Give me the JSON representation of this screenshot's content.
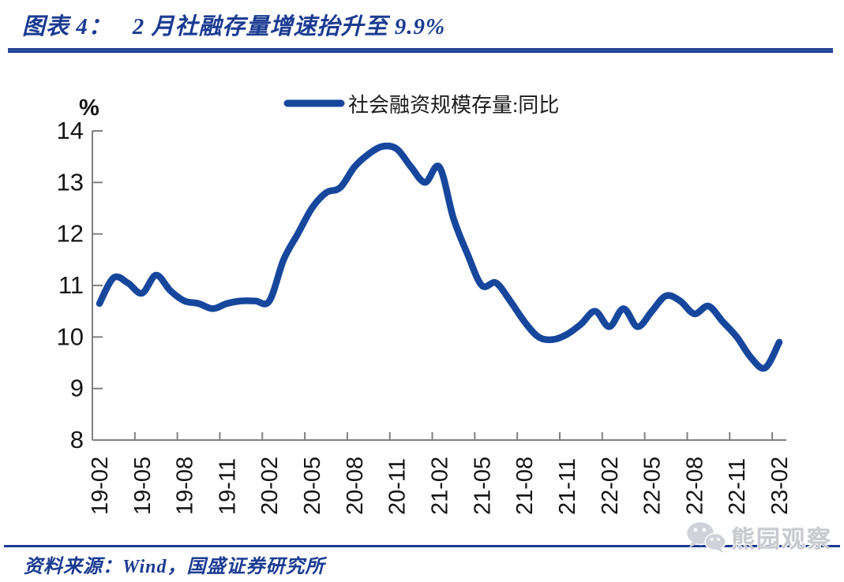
{
  "header": {
    "title_prefix": "图表 4：",
    "title_text": "2 月社融存量增速抬升至 9.9%"
  },
  "chart_data": {
    "type": "line",
    "title": "2 月社融存量增速抬升至 9.9%",
    "legend": "社会融资规模存量:同比",
    "unit_label": "%",
    "x": [
      "19-02",
      "19-03",
      "19-04",
      "19-05",
      "19-06",
      "19-07",
      "19-08",
      "19-09",
      "19-10",
      "19-11",
      "19-12",
      "20-01",
      "20-02",
      "20-03",
      "20-04",
      "20-05",
      "20-06",
      "20-07",
      "20-08",
      "20-09",
      "20-10",
      "20-11",
      "20-12",
      "21-01",
      "21-02",
      "21-03",
      "21-04",
      "21-05",
      "21-06",
      "21-07",
      "21-08",
      "21-09",
      "21-10",
      "21-11",
      "21-12",
      "22-01",
      "22-02",
      "22-03",
      "22-04",
      "22-05",
      "22-06",
      "22-07",
      "22-08",
      "22-09",
      "22-10",
      "22-11",
      "22-12",
      "23-01",
      "23-02"
    ],
    "values": [
      10.65,
      11.15,
      11.05,
      10.85,
      11.2,
      10.9,
      10.7,
      10.65,
      10.55,
      10.65,
      10.7,
      10.7,
      10.7,
      11.5,
      12.0,
      12.5,
      12.8,
      12.9,
      13.3,
      13.55,
      13.7,
      13.65,
      13.3,
      13.0,
      13.3,
      12.3,
      11.6,
      11.0,
      11.05,
      10.7,
      10.3,
      10.0,
      9.95,
      10.05,
      10.25,
      10.5,
      10.2,
      10.55,
      10.2,
      10.5,
      10.8,
      10.7,
      10.45,
      10.6,
      10.3,
      10.0,
      9.6,
      9.4,
      9.9
    ],
    "x_label_every": 3,
    "y_axis": {
      "min": 8,
      "max": 14,
      "ticks": [
        8,
        9,
        10,
        11,
        12,
        13,
        14
      ]
    },
    "grid": "off",
    "legend_position": "top-center"
  },
  "footer": {
    "source": "资料来源：Wind，国盛证券研究所"
  },
  "watermark": {
    "text": "熊园观察",
    "icon": "wechat-icon"
  },
  "colors": {
    "line": "#16479d",
    "accent": "#1b3b92",
    "axis": "#808080",
    "tick_text": "#151515",
    "watermark": "#cfd2d8"
  }
}
